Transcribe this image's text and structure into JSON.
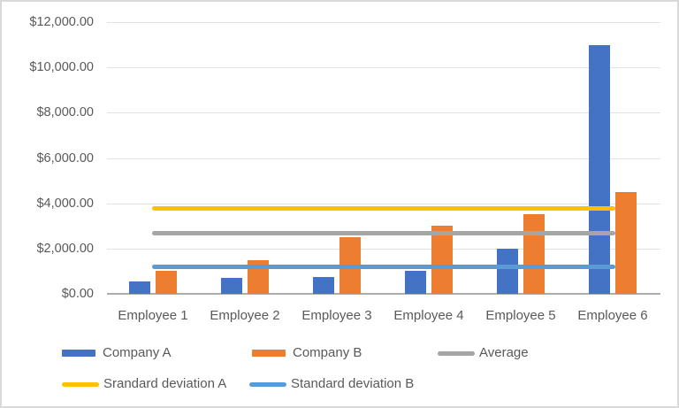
{
  "chart_data": {
    "type": "bar",
    "title": "",
    "xlabel": "",
    "ylabel": "",
    "grid": true,
    "legend_position": "bottom",
    "text_color": "#595959",
    "categories": [
      "Employee 1",
      "Employee 2",
      "Employee 3",
      "Employee 4",
      "Employee 5",
      "Employee 6"
    ],
    "series": [
      {
        "name": "Company A",
        "kind": "bar",
        "color": "#4472C4",
        "values": [
          550,
          700,
          750,
          1000,
          2000,
          11000
        ]
      },
      {
        "name": "Company B",
        "kind": "bar",
        "color": "#ED7D31",
        "values": [
          1000,
          1500,
          2500,
          3000,
          3500,
          4500
        ]
      },
      {
        "name": "Average",
        "kind": "line",
        "color": "#A5A5A5",
        "value": 2666.67
      },
      {
        "name": "Srandard deviation A",
        "kind": "line",
        "color": "#FFC000",
        "value": 3757
      },
      {
        "name": "Standard deviation B",
        "kind": "line",
        "color": "#5B9BD5",
        "value": 1178
      }
    ],
    "y_axis": {
      "min": 0,
      "max": 12000,
      "step": 2000,
      "tick_labels": [
        "$0.00",
        "$2,000.00",
        "$4,000.00",
        "$6,000.00",
        "$8,000.00",
        "$10,000.00",
        "$12,000.00"
      ]
    }
  }
}
